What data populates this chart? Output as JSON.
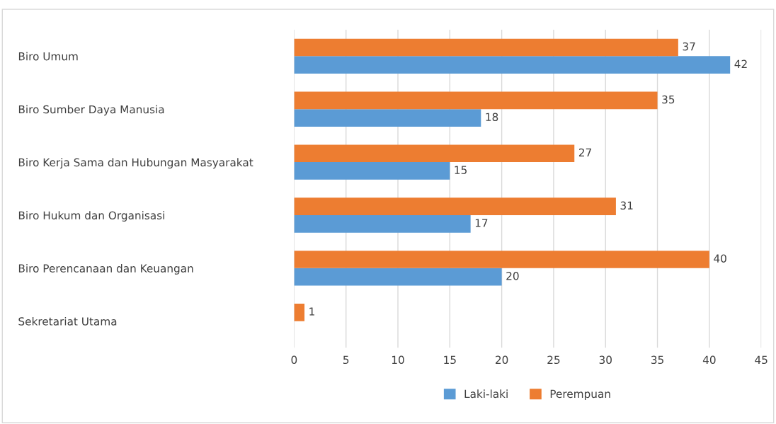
{
  "chart_data": {
    "type": "bar",
    "orientation": "horizontal",
    "categories": [
      "Biro Umum",
      "Biro Sumber Daya Manusia",
      "Biro Kerja Sama dan Hubungan Masyarakat",
      "Biro Hukum dan Organisasi",
      "Biro Perencanaan dan Keuangan",
      "Sekretariat Utama"
    ],
    "series": [
      {
        "name": "Laki-laki",
        "color": "#5b9bd5",
        "values": [
          42,
          18,
          15,
          17,
          20,
          null
        ]
      },
      {
        "name": "Perempuan",
        "color": "#ed7d31",
        "values": [
          37,
          35,
          27,
          31,
          40,
          1
        ]
      }
    ],
    "xlim": [
      0,
      45
    ],
    "xticks": [
      0,
      5,
      10,
      15,
      20,
      25,
      30,
      35,
      40,
      45
    ],
    "grid": "x",
    "legend": "bottom",
    "data_labels": true
  }
}
